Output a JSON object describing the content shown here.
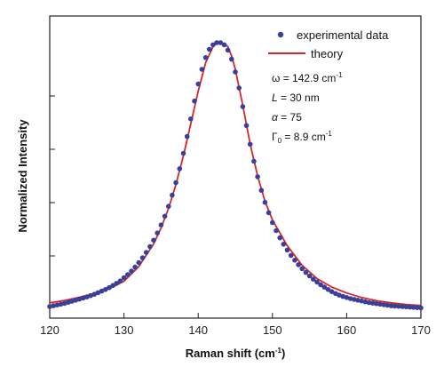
{
  "chart_data": {
    "type": "scatter",
    "xlabel": "Raman shift (cm",
    "xlabel_sup": "-1",
    "xlabel_close": ")",
    "ylabel": "Normalized Intensity",
    "xlim": [
      120,
      170
    ],
    "ylim": [
      0,
      1
    ],
    "x_ticks": [
      {
        "value": 120,
        "label": "120"
      },
      {
        "value": 130,
        "label": "130"
      },
      {
        "value": 140,
        "label": "140"
      },
      {
        "value": 150,
        "label": "150"
      },
      {
        "value": 160,
        "label": "160"
      },
      {
        "value": 170,
        "label": "170"
      }
    ],
    "y_ticks": [
      0.2,
      0.4,
      0.6,
      0.8
    ],
    "grid": false,
    "legend_position": "top-right",
    "series": [
      {
        "name": "experimental data",
        "style": "markers",
        "color": "#3a3f9a",
        "x": [
          120.0,
          120.5,
          121.0,
          121.5,
          122.0,
          122.5,
          123.0,
          123.5,
          124.0,
          124.5,
          125.0,
          125.5,
          126.0,
          126.5,
          127.0,
          127.5,
          128.0,
          128.5,
          129.0,
          129.5,
          130.0,
          130.5,
          131.0,
          131.5,
          132.0,
          132.5,
          133.0,
          133.5,
          134.0,
          134.5,
          135.0,
          135.5,
          136.0,
          136.5,
          137.0,
          137.5,
          138.0,
          138.5,
          139.0,
          139.5,
          140.0,
          140.5,
          141.0,
          141.5,
          142.0,
          142.5,
          143.0,
          143.5,
          144.0,
          144.5,
          145.0,
          145.5,
          146.0,
          146.5,
          147.0,
          147.5,
          148.0,
          148.5,
          149.0,
          149.5,
          150.0,
          150.5,
          151.0,
          151.5,
          152.0,
          152.5,
          153.0,
          153.5,
          154.0,
          154.5,
          155.0,
          155.5,
          156.0,
          156.5,
          157.0,
          157.5,
          158.0,
          158.5,
          159.0,
          159.5,
          160.0,
          160.5,
          161.0,
          161.5,
          162.0,
          162.5,
          163.0,
          163.5,
          164.0,
          164.5,
          165.0,
          165.5,
          166.0,
          166.5,
          167.0,
          167.5,
          168.0,
          168.5,
          169.0,
          169.5,
          170.0
        ],
        "y": [
          0.01,
          0.013,
          0.016,
          0.019,
          0.022,
          0.026,
          0.03,
          0.034,
          0.038,
          0.042,
          0.046,
          0.051,
          0.056,
          0.062,
          0.068,
          0.074,
          0.081,
          0.089,
          0.097,
          0.106,
          0.118,
          0.13,
          0.143,
          0.158,
          0.175,
          0.193,
          0.213,
          0.235,
          0.259,
          0.286,
          0.316,
          0.349,
          0.386,
          0.428,
          0.475,
          0.527,
          0.585,
          0.648,
          0.714,
          0.781,
          0.845,
          0.9,
          0.944,
          0.975,
          0.992,
          1.0,
          1.0,
          0.992,
          0.972,
          0.938,
          0.89,
          0.83,
          0.76,
          0.689,
          0.619,
          0.555,
          0.497,
          0.446,
          0.401,
          0.362,
          0.325,
          0.295,
          0.268,
          0.244,
          0.222,
          0.202,
          0.184,
          0.167,
          0.152,
          0.138,
          0.125,
          0.113,
          0.102,
          0.092,
          0.083,
          0.074,
          0.066,
          0.059,
          0.053,
          0.048,
          0.044,
          0.04,
          0.037,
          0.034,
          0.031,
          0.028,
          0.025,
          0.023,
          0.021,
          0.019,
          0.017,
          0.015,
          0.013,
          0.012,
          0.011,
          0.01,
          0.009,
          0.008,
          0.007,
          0.006,
          0.005
        ]
      },
      {
        "name": "theory",
        "style": "line",
        "color": "#d62728",
        "x": [
          120,
          122,
          124,
          126,
          128,
          130,
          132,
          134,
          135,
          136,
          137,
          138,
          139,
          140,
          141,
          142,
          142.5,
          143,
          143.5,
          144,
          144.5,
          145,
          146,
          147,
          148,
          149,
          150,
          152,
          154,
          156,
          158,
          160,
          162,
          164,
          166,
          168,
          170
        ],
        "y": [
          0.024,
          0.033,
          0.045,
          0.059,
          0.077,
          0.105,
          0.16,
          0.245,
          0.305,
          0.378,
          0.468,
          0.575,
          0.695,
          0.818,
          0.925,
          0.985,
          0.998,
          1.0,
          0.996,
          0.985,
          0.95,
          0.9,
          0.765,
          0.62,
          0.5,
          0.405,
          0.335,
          0.238,
          0.165,
          0.115,
          0.083,
          0.061,
          0.044,
          0.032,
          0.024,
          0.018,
          0.014
        ]
      }
    ],
    "annotations": [
      {
        "symbol": "ω",
        "eq": " = 142.9 cm",
        "sup": "-1"
      },
      {
        "symbol": "L",
        "eq": " = 30 nm"
      },
      {
        "symbol": "α",
        "eq": " = 75"
      },
      {
        "symbol": "Γ",
        "sub": "0",
        "eq": " = 8.9 cm",
        "sup": "-1"
      }
    ]
  }
}
